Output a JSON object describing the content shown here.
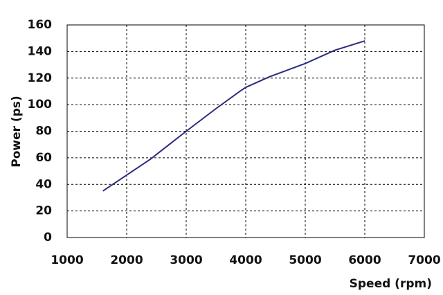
{
  "chart_data": {
    "type": "line",
    "x_label": "Speed (rpm)",
    "y_label": "Power (ps)",
    "x": [
      1600,
      2000,
      2400,
      3000,
      3500,
      3900,
      4000,
      4400,
      5000,
      5500,
      6000
    ],
    "series": [
      {
        "name": "Power",
        "color": "#2b2a7f",
        "values": [
          35,
          47,
          59,
          80,
          97,
          110,
          113,
          121,
          131,
          141,
          148
        ]
      }
    ],
    "xlim": [
      1000,
      7000
    ],
    "xticks": [
      1000,
      2000,
      3000,
      4000,
      5000,
      6000,
      7000
    ],
    "ylim": [
      0,
      160
    ],
    "yticks": [
      0,
      20,
      40,
      60,
      80,
      100,
      120,
      140,
      160
    ],
    "grid": true
  }
}
